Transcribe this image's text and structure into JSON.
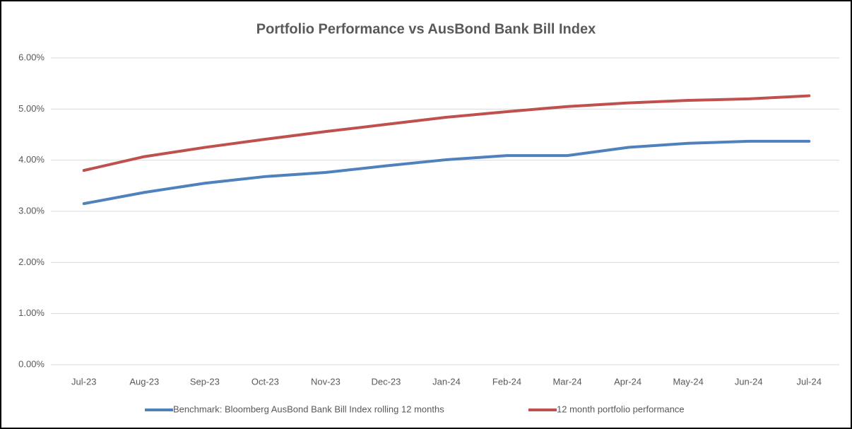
{
  "chart_data": {
    "type": "line",
    "title": "Portfolio Performance vs AusBond Bank Bill Index",
    "categories": [
      "Jul-23",
      "Aug-23",
      "Sep-23",
      "Oct-23",
      "Nov-23",
      "Dec-23",
      "Jan-24",
      "Feb-24",
      "Mar-24",
      "Apr-24",
      "May-24",
      "Jun-24",
      "Jul-24"
    ],
    "series": [
      {
        "name": "Benchmark: Bloomberg AusBond Bank Bill Index rolling 12 months",
        "color": "#4f81bd",
        "values": [
          3.15,
          3.37,
          3.55,
          3.68,
          3.76,
          3.89,
          4.01,
          4.09,
          4.09,
          4.25,
          4.33,
          4.37,
          4.37
        ]
      },
      {
        "name": "12 month portfolio performance",
        "color": "#c0504d",
        "values": [
          3.8,
          4.07,
          4.25,
          4.41,
          4.56,
          4.7,
          4.84,
          4.95,
          5.05,
          5.12,
          5.17,
          5.2,
          5.26
        ]
      }
    ],
    "ylim": [
      0,
      6
    ],
    "yticks": [
      {
        "value": 0,
        "label": "0.00%"
      },
      {
        "value": 1,
        "label": "1.00%"
      },
      {
        "value": 2,
        "label": "2.00%"
      },
      {
        "value": 3,
        "label": "3.00%"
      },
      {
        "value": 4,
        "label": "4.00%"
      },
      {
        "value": 5,
        "label": "5.00%"
      },
      {
        "value": 6,
        "label": "6.00%"
      }
    ],
    "grid": true,
    "legend": "bottom"
  }
}
